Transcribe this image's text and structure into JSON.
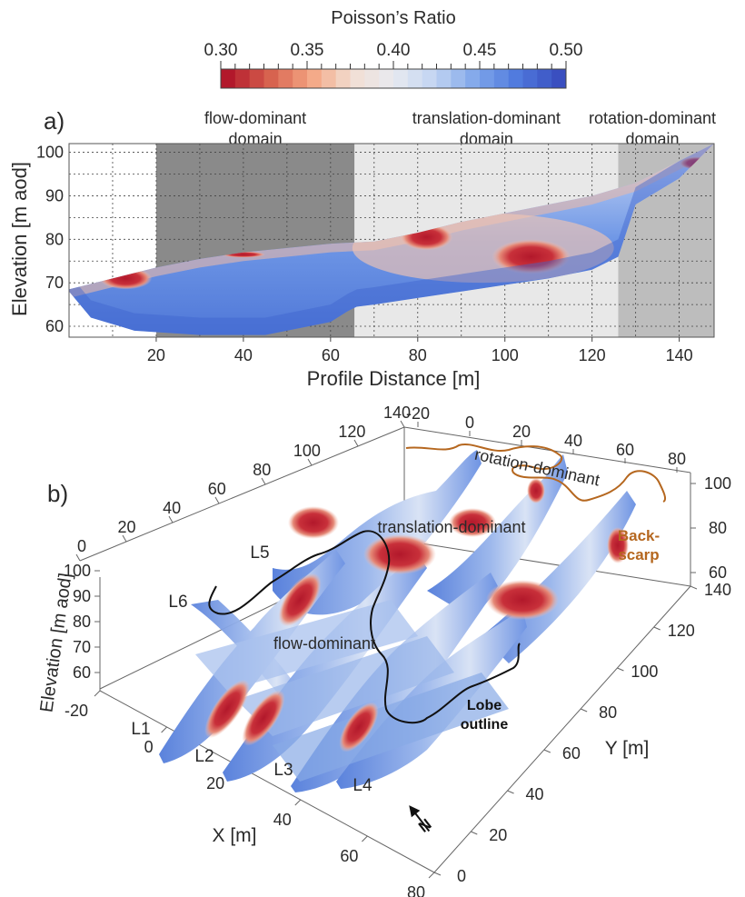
{
  "colorbar": {
    "title": "Poisson’s Ratio",
    "ticks": [
      "0.30",
      "0.35",
      "0.40",
      "0.45",
      "0.50"
    ],
    "range": [
      0.3,
      0.5
    ],
    "colors": [
      "#b2182b",
      "#d6604d",
      "#f4a582",
      "#f2ded3",
      "#e8eaf0",
      "#c2d4f2",
      "#7fa6ea",
      "#4f79dd",
      "#3a4fc0"
    ]
  },
  "panel_a": {
    "label": "a)",
    "xlabel": "Profile Distance [m]",
    "ylabel": "Elevation [m aod]",
    "xlim": [
      0,
      148
    ],
    "ylim": [
      57.5,
      102
    ],
    "xticks": [
      "20",
      "40",
      "60",
      "80",
      "100",
      "120",
      "140"
    ],
    "yticks": [
      "60",
      "70",
      "80",
      "90",
      "100"
    ],
    "domains": [
      {
        "title_line1": "flow-dominant",
        "title_line2": "domain",
        "x_start": 20,
        "x_end": 65.5,
        "shade": "#8a8a8a"
      },
      {
        "title_line1": "translation-dominant",
        "title_line2": "domain",
        "x_start": 65.5,
        "x_end": 126,
        "shade": "#e8e8e8"
      },
      {
        "title_line1": "rotation-dominant",
        "title_line2": "domain",
        "x_start": 126,
        "x_end": 148,
        "shade": "#bdbdbd"
      }
    ],
    "profile_surface": [
      [
        0,
        68.5
      ],
      [
        10,
        71
      ],
      [
        20,
        73.5
      ],
      [
        30,
        75.5
      ],
      [
        40,
        77
      ],
      [
        50,
        78
      ],
      [
        60,
        79
      ],
      [
        70,
        79.5
      ],
      [
        80,
        81.5
      ],
      [
        90,
        84
      ],
      [
        100,
        86
      ],
      [
        110,
        88
      ],
      [
        120,
        90
      ],
      [
        130,
        93
      ],
      [
        140,
        98
      ],
      [
        148,
        102
      ]
    ],
    "profile_bottom": [
      [
        0,
        68
      ],
      [
        5,
        62
      ],
      [
        15,
        59
      ],
      [
        30,
        58
      ],
      [
        45,
        58
      ],
      [
        60,
        61
      ],
      [
        64,
        63.5
      ],
      [
        66,
        64.5
      ],
      [
        70,
        65
      ],
      [
        80,
        66.5
      ],
      [
        90,
        68
      ],
      [
        100,
        69.5
      ],
      [
        110,
        71
      ],
      [
        120,
        73
      ],
      [
        126,
        76
      ],
      [
        130,
        88
      ],
      [
        140,
        94
      ],
      [
        148,
        102
      ]
    ],
    "high_ratio_zones": [
      {
        "x": 13,
        "y": 71,
        "rx": 6,
        "ry": 2.5
      },
      {
        "x": 82,
        "y": 80.5,
        "rx": 6,
        "ry": 3
      },
      {
        "x": 106,
        "y": 76,
        "rx": 9,
        "ry": 4
      },
      {
        "x": 40,
        "y": 76.5,
        "rx": 5,
        "ry": 0.7
      },
      {
        "x": 144,
        "y": 97.5,
        "rx": 4,
        "ry": 1.5
      }
    ]
  },
  "panel_b": {
    "label": "b)",
    "xlabel": "X [m]",
    "ylabel": "Y [m]",
    "zlabel": "Elevation [m aod]",
    "xticks": [
      "-20",
      "0",
      "20",
      "40",
      "60",
      "80"
    ],
    "yticks": [
      "0",
      "20",
      "40",
      "60",
      "80",
      "100",
      "120",
      "140"
    ],
    "zticks": [
      "60",
      "70",
      "80",
      "90",
      "100"
    ],
    "top_yticks": [
      "0",
      "20",
      "40",
      "60",
      "80",
      "100",
      "120",
      "140"
    ],
    "top_xticks": [
      "-20",
      "0",
      "20",
      "40",
      "60",
      "80"
    ],
    "right_zticks": [
      "60",
      "80",
      "100"
    ],
    "profiles": [
      "L1",
      "L2",
      "L3",
      "L4",
      "L5",
      "L6"
    ],
    "domain_labels": {
      "rotation": "rotation-dominant",
      "translation": "translation-dominant",
      "flow": "flow-dominant"
    },
    "backscarp": {
      "line1": "Back-",
      "line2": "scarp",
      "color": "#b5671f"
    },
    "lobe": {
      "line1": "Lobe",
      "line2": "outline"
    },
    "north": "N"
  }
}
